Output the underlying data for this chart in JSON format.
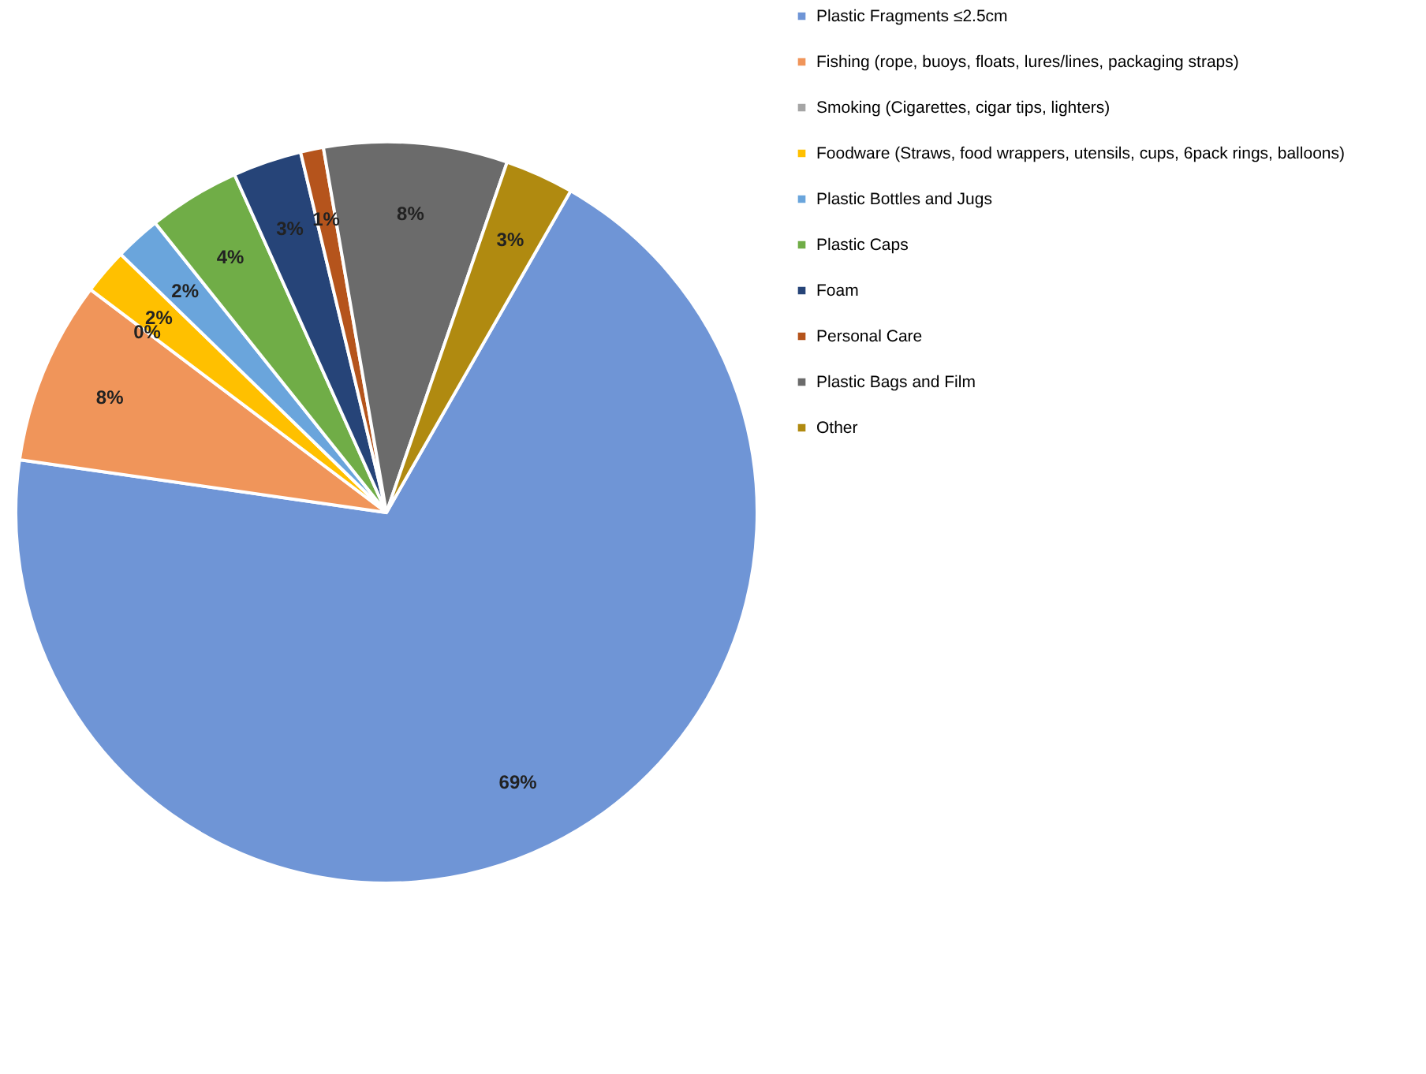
{
  "chart_data": {
    "type": "pie",
    "categories": [
      "Plastic Fragments ≤2.5cm",
      "Fishing (rope, buoys, floats, lures/lines, packaging straps)",
      "Smoking (Cigarettes, cigar tips, lighters)",
      "Foodware (Straws, food wrappers, utensils, cups, 6pack rings, balloons)",
      "Plastic Bottles and Jugs",
      "Plastic Caps",
      "Foam",
      "Personal Care",
      "Plastic Bags and Film",
      "Other"
    ],
    "values": [
      69,
      8,
      0,
      2,
      2,
      4,
      3,
      1,
      8,
      3
    ],
    "value_labels": [
      "69%",
      "8%",
      "0%",
      "2%",
      "2%",
      "4%",
      "3%",
      "1%",
      "8%",
      "3%"
    ],
    "colors": [
      "#6f95d6",
      "#f0955a",
      "#a5a5a5",
      "#ffc000",
      "#6aa5dc",
      "#70ad47",
      "#264478",
      "#b5541c",
      "#6b6b6b",
      "#b08a10"
    ],
    "legend": "right"
  }
}
